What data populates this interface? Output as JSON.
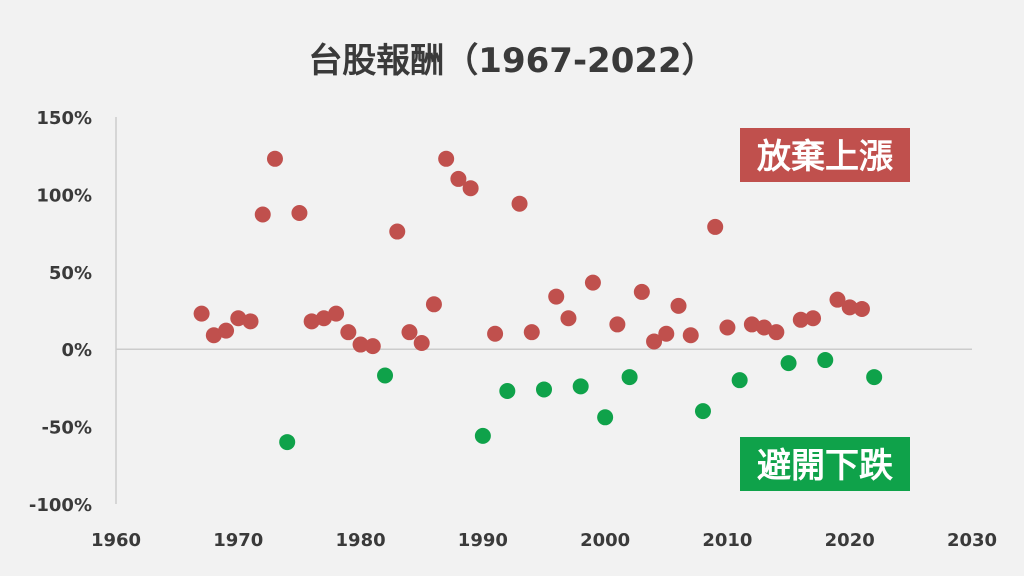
{
  "chart_data": {
    "type": "scatter",
    "title": "台股報酬（1967-2022）",
    "xlabel": "",
    "ylabel": "",
    "xlim": [
      1960,
      2030
    ],
    "ylim": [
      -100,
      150
    ],
    "x_ticks": [
      "1960",
      "1970",
      "1980",
      "1990",
      "2000",
      "2010",
      "2020",
      "2030"
    ],
    "y_ticks": [
      "150%",
      "100%",
      "50%",
      "0%",
      "-50%",
      "-100%"
    ],
    "grid": false,
    "colors": {
      "positive": "#c0504d",
      "negative": "#0fa24a",
      "axis": "#cccccc",
      "background": "#f2f2f2"
    },
    "points": [
      {
        "x": 1967,
        "y": 23
      },
      {
        "x": 1968,
        "y": 9
      },
      {
        "x": 1969,
        "y": 12
      },
      {
        "x": 1970,
        "y": 20
      },
      {
        "x": 1971,
        "y": 18
      },
      {
        "x": 1972,
        "y": 87
      },
      {
        "x": 1973,
        "y": 123
      },
      {
        "x": 1974,
        "y": -60
      },
      {
        "x": 1975,
        "y": 88
      },
      {
        "x": 1976,
        "y": 18
      },
      {
        "x": 1977,
        "y": 20
      },
      {
        "x": 1978,
        "y": 23
      },
      {
        "x": 1979,
        "y": 11
      },
      {
        "x": 1980,
        "y": 3
      },
      {
        "x": 1981,
        "y": 2
      },
      {
        "x": 1982,
        "y": -17
      },
      {
        "x": 1983,
        "y": 76
      },
      {
        "x": 1984,
        "y": 11
      },
      {
        "x": 1985,
        "y": 4
      },
      {
        "x": 1986,
        "y": 29
      },
      {
        "x": 1987,
        "y": 123
      },
      {
        "x": 1988,
        "y": 110
      },
      {
        "x": 1989,
        "y": 104
      },
      {
        "x": 1990,
        "y": -56
      },
      {
        "x": 1991,
        "y": 10
      },
      {
        "x": 1992,
        "y": -27
      },
      {
        "x": 1993,
        "y": 94
      },
      {
        "x": 1994,
        "y": 11
      },
      {
        "x": 1995,
        "y": -26
      },
      {
        "x": 1996,
        "y": 34
      },
      {
        "x": 1997,
        "y": 20
      },
      {
        "x": 1998,
        "y": -24
      },
      {
        "x": 1999,
        "y": 43
      },
      {
        "x": 2000,
        "y": -44
      },
      {
        "x": 2001,
        "y": 16
      },
      {
        "x": 2002,
        "y": -18
      },
      {
        "x": 2003,
        "y": 37
      },
      {
        "x": 2004,
        "y": 5
      },
      {
        "x": 2005,
        "y": 10
      },
      {
        "x": 2006,
        "y": 28
      },
      {
        "x": 2007,
        "y": 9
      },
      {
        "x": 2008,
        "y": -40
      },
      {
        "x": 2009,
        "y": 79
      },
      {
        "x": 2010,
        "y": 14
      },
      {
        "x": 2011,
        "y": -20
      },
      {
        "x": 2012,
        "y": 16
      },
      {
        "x": 2013,
        "y": 14
      },
      {
        "x": 2014,
        "y": 11
      },
      {
        "x": 2015,
        "y": -9
      },
      {
        "x": 2016,
        "y": 19
      },
      {
        "x": 2017,
        "y": 20
      },
      {
        "x": 2018,
        "y": -7
      },
      {
        "x": 2019,
        "y": 32
      },
      {
        "x": 2020,
        "y": 27
      },
      {
        "x": 2021,
        "y": 26
      },
      {
        "x": 2022,
        "y": -18
      }
    ],
    "annotations": [
      {
        "text": "放棄上漲",
        "color": "#c0504d",
        "anchor": "top-right"
      },
      {
        "text": "避開下跌",
        "color": "#0fa24a",
        "anchor": "bottom-right"
      }
    ]
  }
}
